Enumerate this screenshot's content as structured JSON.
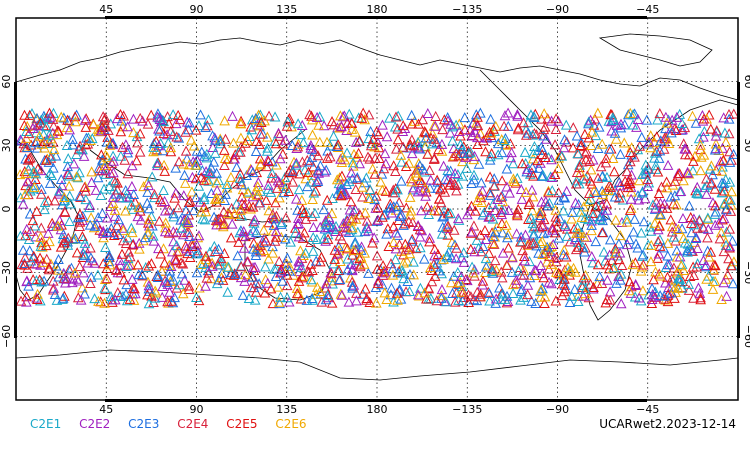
{
  "title_stamp": "UCARwet2.2023-12-14",
  "map": {
    "lon_ticks": [
      {
        "value": 45,
        "label": "45"
      },
      {
        "value": 90,
        "label": "90"
      },
      {
        "value": 135,
        "label": "135"
      },
      {
        "value": 180,
        "label": "180"
      },
      {
        "value": 225,
        "label": "−135"
      },
      {
        "value": 270,
        "label": "−90"
      },
      {
        "value": 315,
        "label": "−45"
      }
    ],
    "lat_ticks": [
      {
        "value": 60,
        "label": "60"
      },
      {
        "value": 30,
        "label": "30"
      },
      {
        "value": 0,
        "label": "0"
      },
      {
        "value": -30,
        "label": "−30"
      },
      {
        "value": -60,
        "label": "−60"
      }
    ],
    "lon_range": [
      0,
      360
    ],
    "lat_range": [
      -90,
      90
    ],
    "grid": "dotted",
    "marker": "triangle-open",
    "observation_lat_band": [
      -45,
      45
    ]
  },
  "legend": [
    {
      "label": "C2E1",
      "color": "#1aa9c9"
    },
    {
      "label": "C2E2",
      "color": "#a020c0"
    },
    {
      "label": "C2E3",
      "color": "#1e6fe0"
    },
    {
      "label": "C2E4",
      "color": "#d8203a"
    },
    {
      "label": "C2E5",
      "color": "#e01010"
    },
    {
      "label": "C2E6",
      "color": "#f0a800"
    }
  ]
}
